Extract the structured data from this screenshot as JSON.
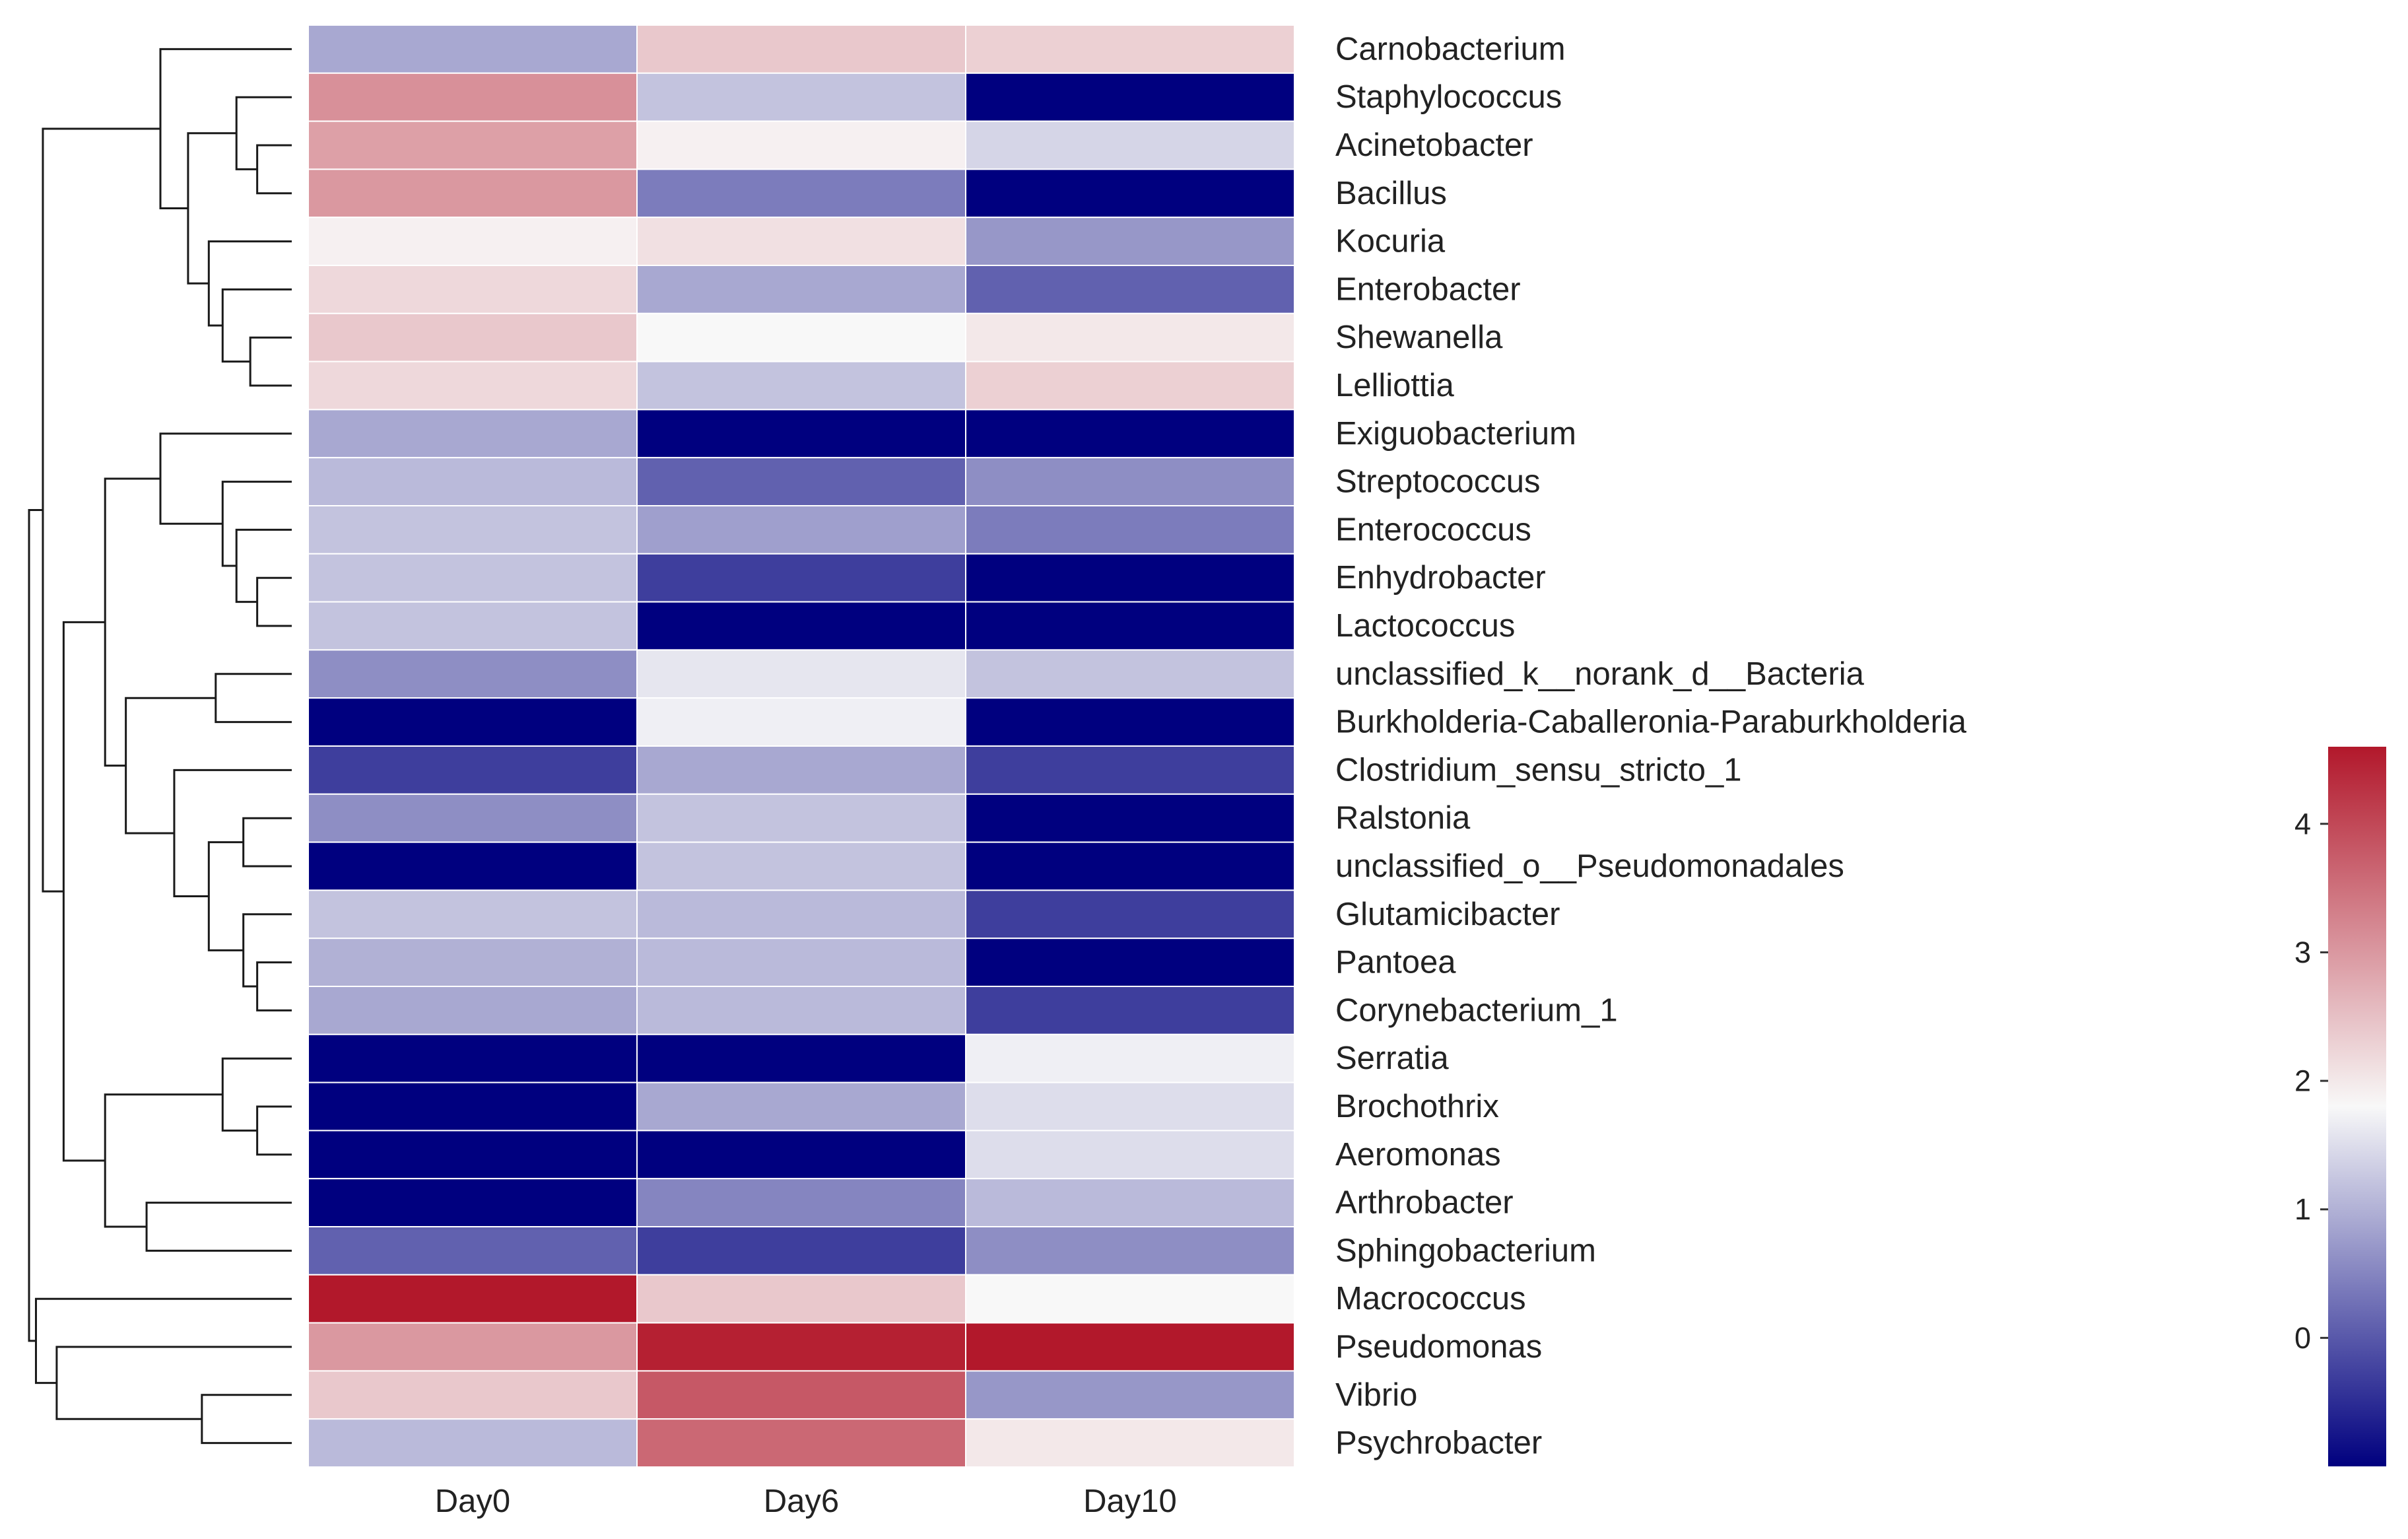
{
  "chart_data": {
    "type": "heatmap",
    "title": "",
    "xlabel": "",
    "ylabel": "",
    "columns": [
      "Day0",
      "Day6",
      "Day10"
    ],
    "rows": [
      "Carnobacterium",
      "Staphylococcus",
      "Acinetobacter",
      "Bacillus",
      "Kocuria",
      "Enterobacter",
      "Shewanella",
      "Lelliottia",
      "Exiguobacterium",
      "Streptococcus",
      "Enterococcus",
      "Enhydrobacter",
      "Lactococcus",
      "unclassified_k__norank_d__Bacteria",
      "Burkholderia-Caballeronia-Paraburkholderia",
      "Clostridium_sensu_stricto_1",
      "Ralstonia",
      "unclassified_o__Pseudomonadales",
      "Glutamicibacter",
      "Pantoea",
      "Corynebacterium_1",
      "Serratia",
      "Brochothrix",
      "Aeromonas",
      "Arthrobacter",
      "Sphingobacterium",
      "Macrococcus",
      "Pseudomonas",
      "Vibrio",
      "Psychrobacter"
    ],
    "values": [
      [
        0.9,
        2.4,
        2.3
      ],
      [
        3.1,
        1.2,
        -1.0
      ],
      [
        2.9,
        1.9,
        1.4
      ],
      [
        3.0,
        0.4,
        -1.0
      ],
      [
        1.9,
        2.1,
        0.7
      ],
      [
        2.2,
        0.9,
        0.1
      ],
      [
        2.4,
        1.8,
        2.0
      ],
      [
        2.2,
        1.2,
        2.3
      ],
      [
        0.9,
        -1.0,
        -1.0
      ],
      [
        1.1,
        0.1,
        0.6
      ],
      [
        1.2,
        0.8,
        0.4
      ],
      [
        1.2,
        -0.3,
        -1.0
      ],
      [
        1.2,
        -1.0,
        -1.0
      ],
      [
        0.6,
        1.6,
        1.2
      ],
      [
        -1.0,
        1.7,
        -1.0
      ],
      [
        -0.3,
        0.9,
        -0.3
      ],
      [
        0.6,
        1.2,
        -1.0
      ],
      [
        -1.0,
        1.2,
        -1.0
      ],
      [
        1.2,
        1.1,
        -0.3
      ],
      [
        1.0,
        1.1,
        -1.0
      ],
      [
        0.9,
        1.1,
        -0.3
      ],
      [
        -1.0,
        -1.0,
        1.7
      ],
      [
        -1.0,
        0.9,
        1.5
      ],
      [
        -1.0,
        -1.0,
        1.5
      ],
      [
        -1.0,
        0.5,
        1.1
      ],
      [
        0.1,
        -0.3,
        0.6
      ],
      [
        4.6,
        2.4,
        1.8
      ],
      [
        3.0,
        4.5,
        4.6
      ],
      [
        2.4,
        3.8,
        0.7
      ],
      [
        1.1,
        3.6,
        2.0
      ]
    ],
    "colorscale": [
      "#00007f",
      "#f8f8f8",
      "#b2182b"
    ],
    "colorbar": {
      "range": [
        -1.0,
        4.6
      ],
      "ticks": [
        0,
        1,
        2,
        3,
        4
      ]
    },
    "row_dendrogram": {
      "leaf_order": [
        0,
        1,
        2,
        3,
        4,
        5,
        6,
        7,
        8,
        9,
        10,
        11,
        12,
        13,
        14,
        15,
        16,
        17,
        18,
        19,
        20,
        21,
        22,
        23,
        24,
        25,
        26,
        27,
        28,
        29
      ],
      "merges": [
        [
          2,
          3,
          0.5
        ],
        [
          1,
          30,
          0.8
        ],
        [
          6,
          7,
          0.6
        ],
        [
          5,
          32,
          1.0
        ],
        [
          4,
          33,
          1.2
        ],
        [
          31,
          34,
          1.5
        ],
        [
          0,
          35,
          1.9
        ],
        [
          11,
          12,
          0.5
        ],
        [
          10,
          37,
          0.8
        ],
        [
          9,
          38,
          1.0
        ],
        [
          8,
          39,
          1.9
        ],
        [
          13,
          14,
          1.1
        ],
        [
          16,
          17,
          0.7
        ],
        [
          19,
          20,
          0.5
        ],
        [
          18,
          43,
          0.7
        ],
        [
          42,
          44,
          1.2
        ],
        [
          15,
          45,
          1.7
        ],
        [
          41,
          46,
          2.4
        ],
        [
          40,
          47,
          2.7
        ],
        [
          22,
          23,
          0.5
        ],
        [
          21,
          49,
          1.0
        ],
        [
          24,
          25,
          2.1
        ],
        [
          50,
          51,
          2.7
        ],
        [
          48,
          52,
          3.3
        ],
        [
          36,
          53,
          3.6
        ],
        [
          28,
          29,
          1.3
        ],
        [
          27,
          55,
          3.4
        ],
        [
          26,
          56,
          3.7
        ],
        [
          54,
          57,
          3.8
        ]
      ]
    }
  }
}
